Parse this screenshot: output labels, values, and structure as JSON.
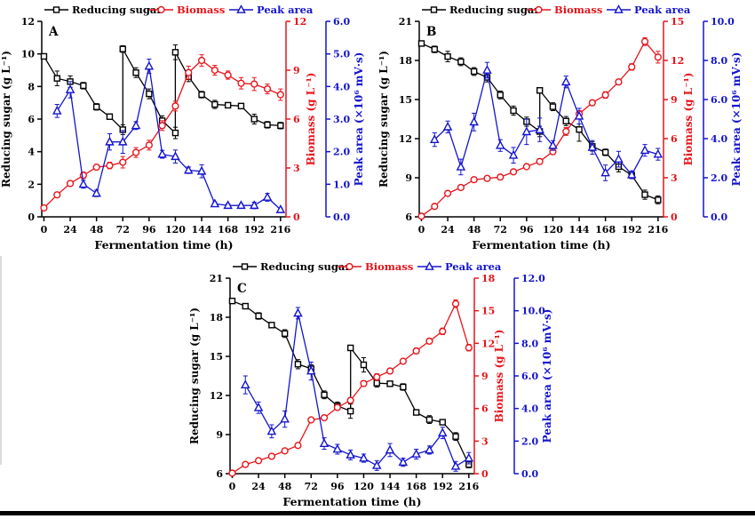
{
  "page": {
    "background": "#ffffff",
    "footer_bar_color": "#000000"
  },
  "colors": {
    "sugar": "#000000",
    "biomass": "#e8141b",
    "peak": "#1414cf",
    "axis": "#000000"
  },
  "chart_data": [
    {
      "type": "line",
      "panel_label": "A",
      "xlabel": "Fermentation time (h)",
      "x_ticks": [
        0,
        24,
        48,
        72,
        96,
        120,
        144,
        168,
        192,
        216
      ],
      "x_range": [
        -2,
        221
      ],
      "legend": [
        {
          "label": "Reducing sugar",
          "color": "#000000",
          "marker": "square"
        },
        {
          "label": "Biomass",
          "color": "#e8141b",
          "marker": "circle"
        },
        {
          "label": "Peak area",
          "color": "#1414cf",
          "marker": "triangle"
        }
      ],
      "axes": {
        "left": {
          "title": "Reducing sugar (g L⁻¹)",
          "range": [
            0,
            12
          ],
          "ticks": [
            0,
            2,
            4,
            6,
            8,
            10,
            12
          ],
          "decimals": 0,
          "color": "#000000"
        },
        "right1": {
          "title": "Biomass (g L⁻¹)",
          "range": [
            0,
            12
          ],
          "ticks": [
            0,
            3,
            6,
            9,
            12
          ],
          "decimals": 0,
          "color": "#e8141b"
        },
        "right2": {
          "title": "Peak area (×10⁶ mV·s)",
          "range": [
            0,
            6
          ],
          "ticks": [
            0,
            1,
            2,
            3,
            4,
            5,
            6
          ],
          "decimals": 1,
          "color": "#1414cf"
        }
      },
      "series": [
        {
          "name": "Reducing sugar",
          "axis": "left",
          "color": "#000000",
          "marker": "square",
          "x": [
            0,
            12,
            24,
            36,
            48,
            60,
            72,
            72,
            84,
            96,
            108,
            120,
            120,
            132,
            144,
            156,
            168,
            180,
            192,
            204,
            216
          ],
          "y": [
            9.85,
            8.5,
            8.3,
            8.05,
            6.75,
            6.15,
            5.35,
            10.3,
            8.85,
            7.55,
            5.9,
            5.15,
            10.1,
            8.6,
            7.5,
            6.9,
            6.85,
            6.8,
            6.0,
            5.65,
            5.6
          ],
          "err": [
            0.15,
            0.45,
            0.35,
            0.2,
            0.2,
            0.15,
            0.3,
            0.2,
            0.3,
            0.3,
            0.3,
            0.35,
            0.45,
            0.3,
            0.2,
            0.25,
            0.15,
            0.15,
            0.3,
            0.2,
            0.2
          ]
        },
        {
          "name": "Biomass",
          "axis": "right1",
          "color": "#e8141b",
          "marker": "circle",
          "x": [
            0,
            12,
            24,
            36,
            48,
            60,
            72,
            84,
            96,
            108,
            120,
            132,
            144,
            156,
            168,
            180,
            192,
            204,
            216
          ],
          "y": [
            0.55,
            1.35,
            2.05,
            2.55,
            3.05,
            3.15,
            3.35,
            3.95,
            4.4,
            5.6,
            6.8,
            8.85,
            9.6,
            9.0,
            8.7,
            8.2,
            8.15,
            7.85,
            7.5
          ],
          "err": [
            0.1,
            0.15,
            0.15,
            0.2,
            0.15,
            0.2,
            0.35,
            0.3,
            0.3,
            0.3,
            0.3,
            0.4,
            0.35,
            0.3,
            0.25,
            0.35,
            0.4,
            0.3,
            0.35
          ]
        },
        {
          "name": "Peak area",
          "axis": "right2",
          "color": "#1414cf",
          "marker": "triangle",
          "x": [
            12,
            24,
            36,
            48,
            60,
            72,
            84,
            96,
            108,
            120,
            132,
            144,
            156,
            168,
            180,
            192,
            204,
            216
          ],
          "y": [
            3.25,
            3.9,
            1.0,
            0.72,
            2.3,
            2.3,
            2.8,
            4.62,
            1.92,
            1.85,
            1.43,
            1.4,
            0.4,
            0.35,
            0.35,
            0.35,
            0.6,
            0.22
          ],
          "err": [
            0.2,
            0.25,
            0.12,
            0.1,
            0.25,
            0.35,
            0.12,
            0.22,
            0.12,
            0.2,
            0.1,
            0.2,
            0.06,
            0.05,
            0.05,
            0.1,
            0.12,
            0.05
          ]
        }
      ]
    },
    {
      "type": "line",
      "panel_label": "B",
      "xlabel": "Fermentation time (h)",
      "x_ticks": [
        0,
        24,
        48,
        72,
        96,
        120,
        144,
        168,
        192,
        216
      ],
      "x_range": [
        -2,
        221
      ],
      "legend": [
        {
          "label": "Reducing sugar",
          "color": "#000000",
          "marker": "square"
        },
        {
          "label": "Biomass",
          "color": "#e8141b",
          "marker": "circle"
        },
        {
          "label": "Peak area",
          "color": "#1414cf",
          "marker": "triangle"
        }
      ],
      "axes": {
        "left": {
          "title": "Reducing sugar (g L⁻¹)",
          "range": [
            6,
            21
          ],
          "ticks": [
            6,
            9,
            12,
            15,
            18,
            21
          ],
          "decimals": 0,
          "color": "#000000"
        },
        "right1": {
          "title": "Biomass (g L⁻¹)",
          "range": [
            0,
            15
          ],
          "ticks": [
            0,
            3,
            6,
            9,
            12,
            15
          ],
          "decimals": 0,
          "color": "#e8141b"
        },
        "right2": {
          "title": "Peak area (×10⁶ mV·s)",
          "range": [
            0,
            10
          ],
          "ticks": [
            0,
            2,
            4,
            6,
            8,
            10
          ],
          "decimals": 1,
          "color": "#1414cf"
        }
      },
      "series": [
        {
          "name": "Reducing sugar",
          "axis": "left",
          "color": "#000000",
          "marker": "square",
          "x": [
            0,
            12,
            24,
            36,
            48,
            60,
            72,
            84,
            96,
            108,
            108,
            120,
            132,
            144,
            156,
            168,
            180,
            192,
            204,
            216
          ],
          "y": [
            19.3,
            18.85,
            18.3,
            17.9,
            17.15,
            16.7,
            15.35,
            14.15,
            13.3,
            12.55,
            15.7,
            14.45,
            13.35,
            12.7,
            11.4,
            10.95,
            9.85,
            9.2,
            7.7,
            7.3
          ],
          "err": [
            0.1,
            0.25,
            0.4,
            0.3,
            0.3,
            0.35,
            0.3,
            0.35,
            0.35,
            0.4,
            0.2,
            0.3,
            0.35,
            0.9,
            0.35,
            0.25,
            0.4,
            0.2,
            0.35,
            0.3
          ]
        },
        {
          "name": "Biomass",
          "axis": "right1",
          "color": "#e8141b",
          "marker": "circle",
          "x": [
            0,
            12,
            24,
            36,
            48,
            60,
            72,
            84,
            96,
            108,
            120,
            132,
            144,
            156,
            168,
            180,
            192,
            204,
            216
          ],
          "y": [
            0.05,
            0.8,
            1.8,
            2.25,
            2.85,
            2.95,
            3.05,
            3.45,
            3.85,
            4.25,
            5.0,
            6.55,
            7.9,
            8.75,
            9.35,
            10.35,
            11.5,
            13.45,
            12.25
          ],
          "err": [
            0.05,
            0.1,
            0.15,
            0.15,
            0.15,
            0.15,
            0.2,
            0.15,
            0.15,
            0.2,
            0.2,
            0.3,
            0.25,
            0.2,
            0.25,
            0.2,
            0.25,
            0.3,
            0.45
          ]
        },
        {
          "name": "Peak area",
          "axis": "right2",
          "color": "#1414cf",
          "marker": "triangle",
          "x": [
            12,
            24,
            36,
            48,
            60,
            72,
            84,
            96,
            108,
            120,
            132,
            144,
            156,
            168,
            180,
            192,
            204,
            216
          ],
          "y": [
            3.95,
            4.6,
            2.55,
            4.85,
            7.5,
            3.65,
            3.15,
            4.35,
            4.45,
            3.65,
            6.9,
            5.15,
            3.55,
            2.25,
            2.95,
            2.15,
            3.4,
            3.2
          ],
          "err": [
            0.35,
            0.3,
            0.4,
            0.45,
            0.4,
            0.3,
            0.4,
            0.65,
            0.6,
            0.25,
            0.3,
            0.4,
            0.35,
            0.4,
            0.4,
            0.2,
            0.3,
            0.3
          ]
        }
      ]
    },
    {
      "type": "line",
      "panel_label": "C",
      "xlabel": "Fermentation time (h)",
      "x_ticks": [
        0,
        24,
        48,
        72,
        96,
        120,
        144,
        168,
        192,
        216
      ],
      "x_range": [
        -2,
        221
      ],
      "legend": [
        {
          "label": "Reducing sugar",
          "color": "#000000",
          "marker": "square"
        },
        {
          "label": "Biomass",
          "color": "#e8141b",
          "marker": "circle"
        },
        {
          "label": "Peak area",
          "color": "#1414cf",
          "marker": "triangle"
        }
      ],
      "axes": {
        "left": {
          "title": "Reducing sugar (g L⁻¹)",
          "range": [
            6,
            21
          ],
          "ticks": [
            6,
            9,
            12,
            15,
            18,
            21
          ],
          "decimals": 0,
          "color": "#000000"
        },
        "right1": {
          "title": "Biomass (g L⁻¹)",
          "range": [
            0,
            18
          ],
          "ticks": [
            0,
            3,
            6,
            9,
            12,
            15,
            18
          ],
          "decimals": 0,
          "color": "#e8141b"
        },
        "right2": {
          "title": "Peak area (×10⁶ mV·s)",
          "range": [
            0,
            12
          ],
          "ticks": [
            0,
            2,
            4,
            6,
            8,
            10,
            12
          ],
          "decimals": 1,
          "color": "#1414cf"
        }
      },
      "series": [
        {
          "name": "Reducing sugar",
          "axis": "left",
          "color": "#000000",
          "marker": "square",
          "x": [
            0,
            12,
            24,
            36,
            48,
            60,
            72,
            84,
            96,
            108,
            108,
            120,
            132,
            144,
            156,
            168,
            180,
            192,
            204,
            216
          ],
          "y": [
            19.25,
            18.85,
            18.1,
            17.4,
            16.75,
            14.4,
            14.05,
            12.05,
            11.2,
            10.8,
            15.65,
            14.35,
            12.95,
            12.9,
            12.65,
            10.7,
            10.15,
            9.95,
            8.85,
            6.7
          ],
          "err": [
            0.1,
            0.15,
            0.25,
            0.15,
            0.3,
            0.35,
            0.3,
            0.3,
            0.3,
            0.55,
            0.2,
            0.55,
            0.3,
            0.2,
            0.25,
            0.15,
            0.3,
            0.2,
            0.3,
            0.25
          ]
        },
        {
          "name": "Biomass",
          "axis": "right1",
          "color": "#e8141b",
          "marker": "circle",
          "x": [
            0,
            12,
            24,
            36,
            48,
            60,
            72,
            84,
            96,
            108,
            120,
            132,
            144,
            156,
            168,
            180,
            192,
            204,
            216
          ],
          "y": [
            0.05,
            0.85,
            1.2,
            1.6,
            2.1,
            2.6,
            4.95,
            5.15,
            6.1,
            6.75,
            8.3,
            8.9,
            9.45,
            10.35,
            11.3,
            12.2,
            13.1,
            15.65,
            11.6
          ],
          "err": [
            0.05,
            0.1,
            0.1,
            0.1,
            0.15,
            0.15,
            0.2,
            0.15,
            0.2,
            0.25,
            0.25,
            0.3,
            0.25,
            0.2,
            0.25,
            0.25,
            0.3,
            0.35,
            0.3
          ]
        },
        {
          "name": "Peak area",
          "axis": "right2",
          "color": "#1414cf",
          "marker": "triangle",
          "x": [
            12,
            24,
            36,
            48,
            60,
            72,
            84,
            96,
            108,
            120,
            132,
            144,
            156,
            168,
            180,
            192,
            204,
            216
          ],
          "y": [
            5.45,
            4.05,
            2.6,
            3.35,
            9.85,
            6.3,
            1.85,
            1.5,
            1.15,
            0.95,
            0.5,
            1.45,
            0.7,
            1.2,
            1.45,
            2.5,
            0.45,
            0.95
          ],
          "err": [
            0.55,
            0.35,
            0.4,
            0.5,
            0.35,
            0.55,
            0.35,
            0.3,
            0.3,
            0.25,
            0.3,
            0.4,
            0.25,
            0.3,
            0.25,
            0.35,
            0.3,
            0.35
          ]
        }
      ]
    }
  ]
}
